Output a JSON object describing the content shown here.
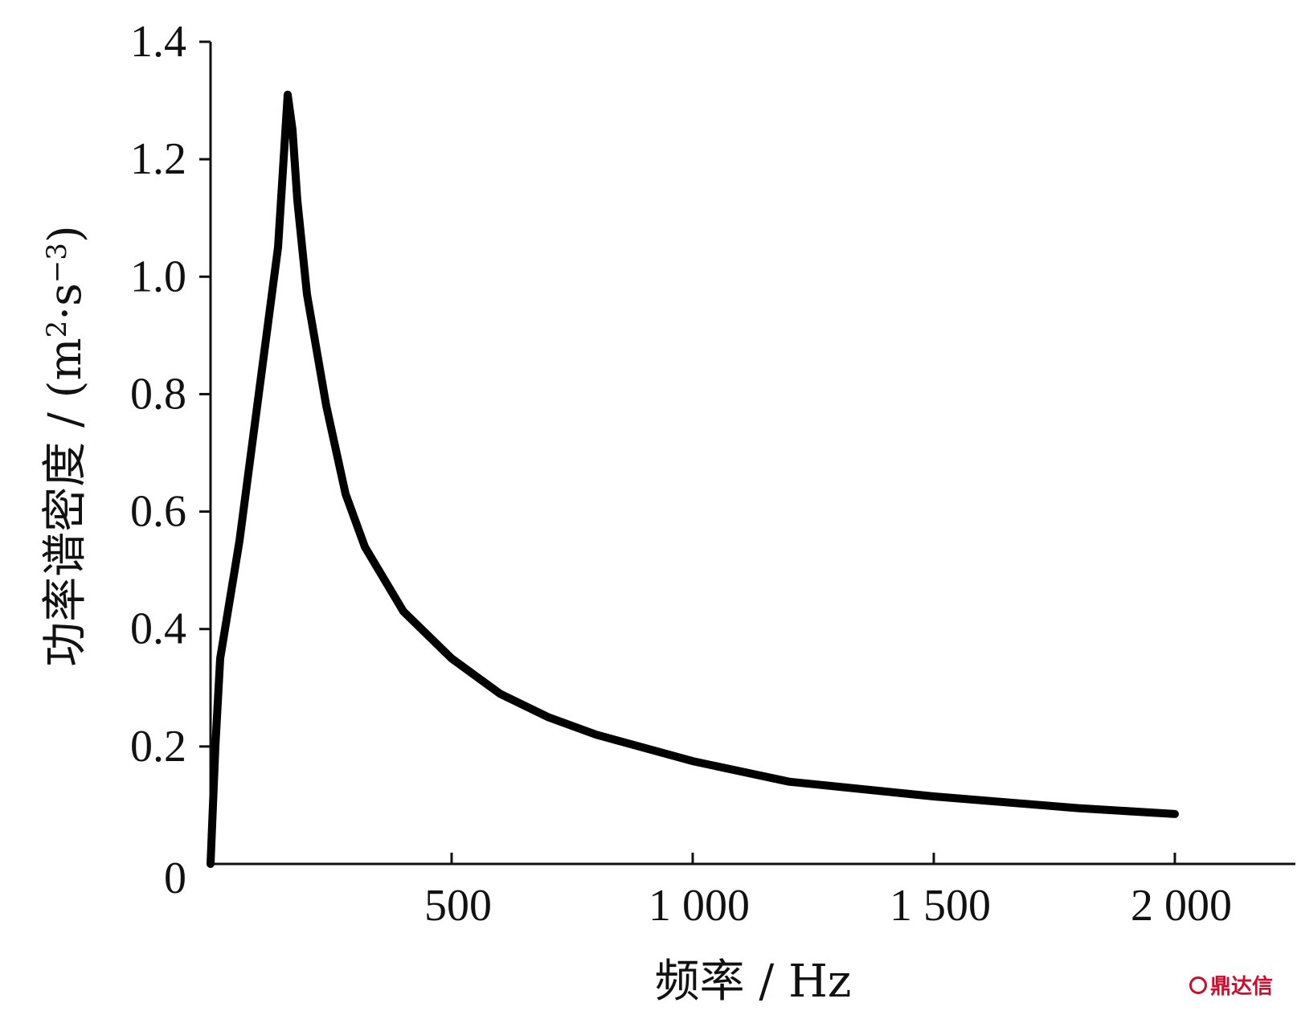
{
  "chart_data": {
    "type": "line",
    "title": "",
    "xlabel": "频率 / Hz",
    "ylabel_main": "功率谱密度 / (m",
    "ylabel_sup1": "2",
    "ylabel_mid": "·s",
    "ylabel_sup2": "−3",
    "ylabel_end": ")",
    "xlim": [
      0,
      2250
    ],
    "ylim": [
      0,
      1.4
    ],
    "x_ticks": [
      500,
      1000,
      1500,
      2000
    ],
    "x_tick_labels": [
      "500",
      "1 000",
      "1 500",
      "2 000"
    ],
    "y_ticks": [
      0,
      0.2,
      0.4,
      0.6,
      0.8,
      1.0,
      1.2,
      1.4
    ],
    "y_tick_labels": [
      "0",
      "0.2",
      "0.4",
      "0.6",
      "0.8",
      "1.0",
      "1.2",
      "1.4"
    ],
    "grid": false,
    "series": [
      {
        "x": [
          0,
          10,
          20,
          60,
          100,
          140,
          160,
          170,
          180,
          200,
          240,
          280,
          320,
          400,
          500,
          600,
          700,
          800,
          1000,
          1200,
          1500,
          1800,
          2000
        ],
        "y": [
          0.0,
          0.2,
          0.35,
          0.55,
          0.8,
          1.05,
          1.31,
          1.25,
          1.13,
          0.97,
          0.78,
          0.63,
          0.54,
          0.43,
          0.35,
          0.29,
          0.25,
          0.22,
          0.175,
          0.14,
          0.115,
          0.095,
          0.085
        ]
      }
    ],
    "colors": {
      "line": "#000000",
      "axis": "#111111"
    }
  },
  "watermark": {
    "text": "鼎达信"
  }
}
